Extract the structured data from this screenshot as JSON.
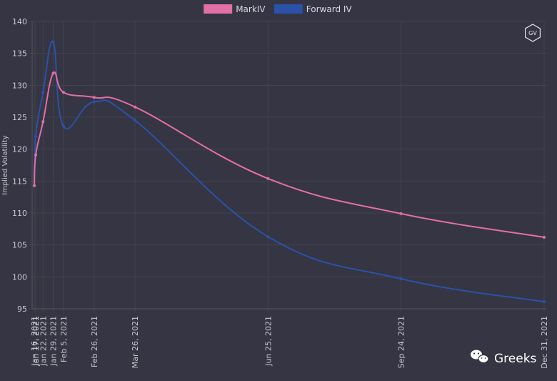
{
  "chart_data": {
    "type": "line",
    "title": "",
    "xlabel": "",
    "ylabel": "Implied Volatility",
    "ylim": [
      95,
      140
    ],
    "yticks": [
      95,
      100,
      105,
      110,
      115,
      120,
      125,
      130,
      135,
      140
    ],
    "grid": true,
    "legend_position": "top-center",
    "categories": [
      "Jan 16, 2021",
      "Jan 17, 2021",
      "Jan 22, 2021",
      "Jan 29, 2021",
      "Feb 5, 2021",
      "Feb 26, 2021",
      "Mar 26, 2021",
      "Jun 25, 2021",
      "Sep 24, 2021",
      "Dec 31, 2021"
    ],
    "x_dates": [
      "2021-01-16",
      "2021-01-17",
      "2021-01-22",
      "2021-01-29",
      "2021-02-05",
      "2021-02-26",
      "2021-03-26",
      "2021-06-25",
      "2021-09-24",
      "2021-12-31"
    ],
    "series": [
      {
        "name": "MarkIV",
        "color": "#e26fa5",
        "values": [
          114.3,
          119.1,
          124.3,
          131.9,
          128.9,
          128.1,
          126.6,
          115.4,
          109.9,
          106.2
        ]
      },
      {
        "name": "Forward IV",
        "color": "#2a52a8",
        "values": [
          114.3,
          122.0,
          128.9,
          136.8,
          123.6,
          127.4,
          124.5,
          106.3,
          99.7,
          96.1
        ]
      }
    ]
  },
  "logo": {
    "text": "GV"
  },
  "watermark": {
    "text": "Greeks"
  }
}
